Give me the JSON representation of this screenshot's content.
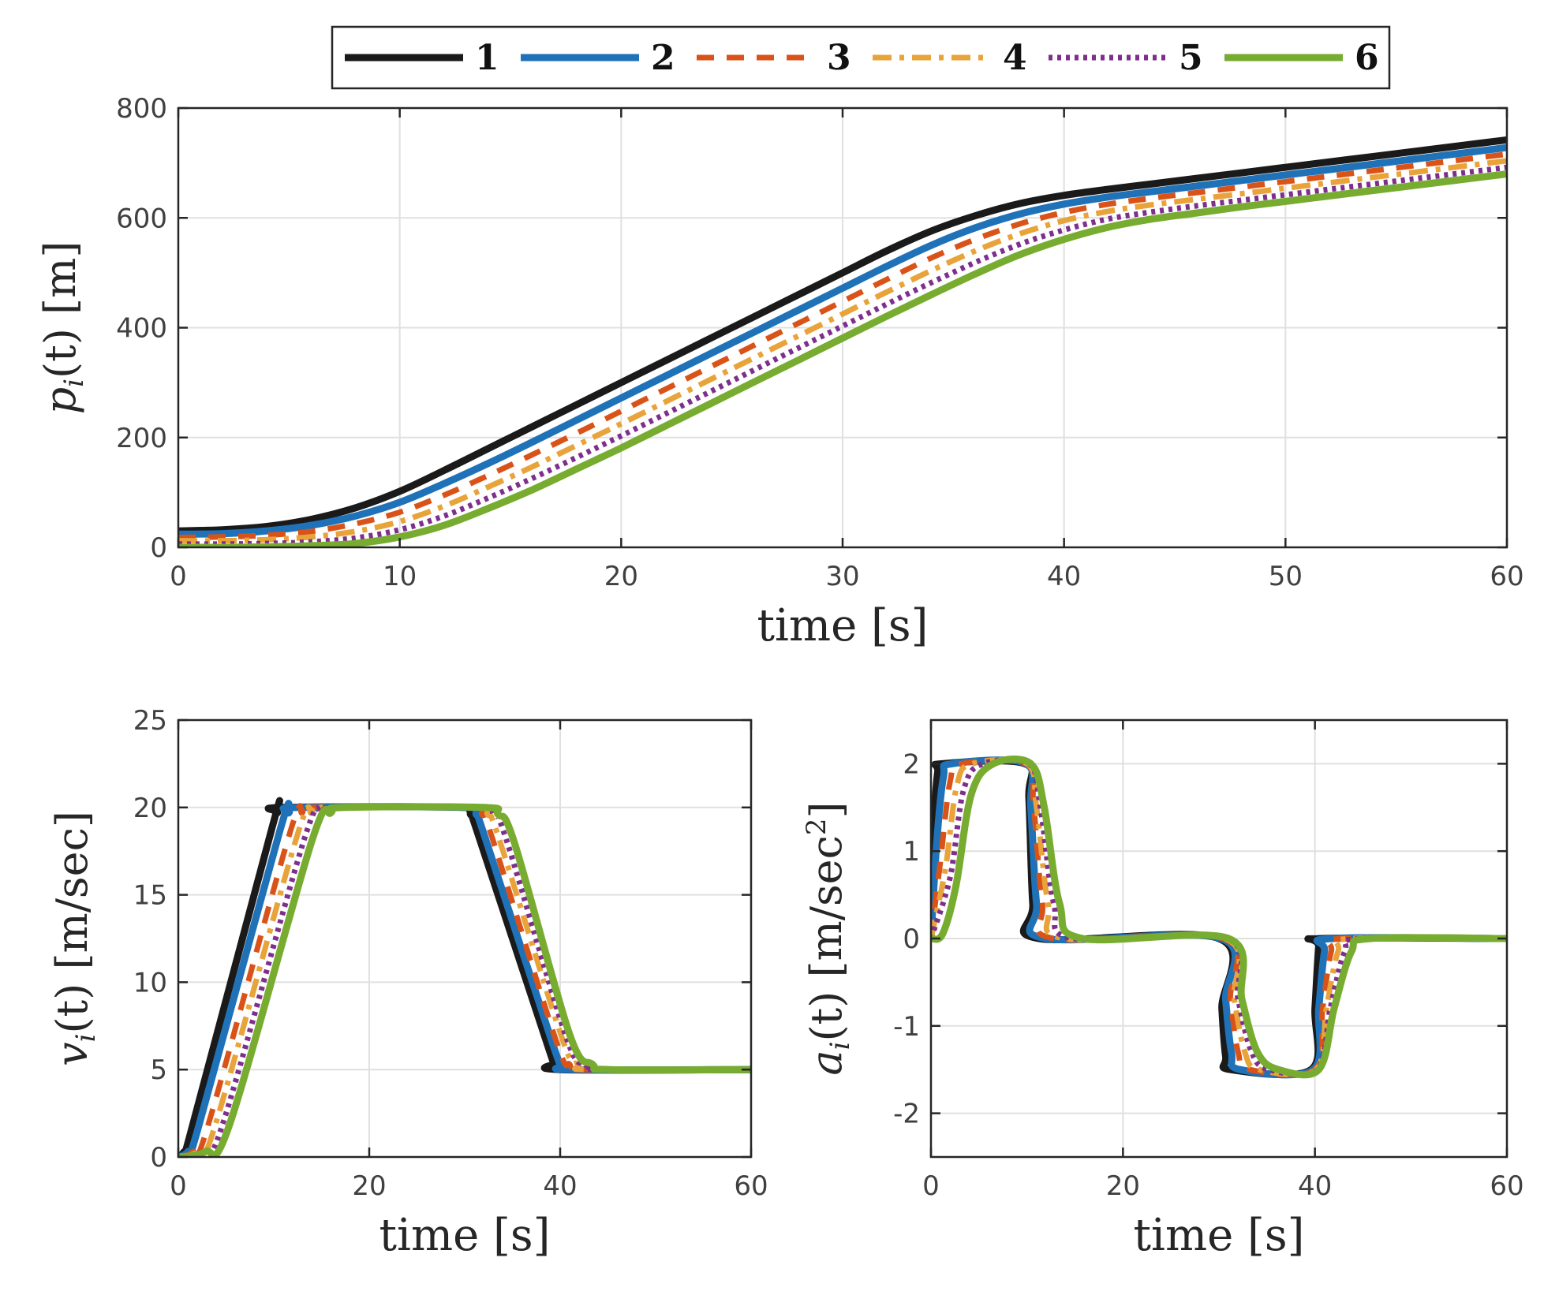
{
  "chart_data": [
    {
      "id": "position",
      "type": "line",
      "xlabel": "time [s]",
      "ylabel_main": "p",
      "ylabel_sub": "i",
      "ylabel_tail": "(t) [m]",
      "xlim": [
        0,
        60
      ],
      "ylim": [
        0,
        800
      ],
      "xticks": [
        0,
        10,
        20,
        30,
        40,
        50,
        60
      ],
      "yticks": [
        0,
        200,
        400,
        600,
        800
      ],
      "x": [
        0,
        2,
        4,
        6,
        8,
        10,
        12,
        14,
        16,
        18,
        20,
        22,
        24,
        26,
        28,
        30,
        32,
        34,
        36,
        38,
        40,
        42,
        44,
        46,
        48,
        50,
        52,
        54,
        56,
        58,
        60
      ],
      "series": [
        {
          "name": "1",
          "values": [
            30,
            32,
            38,
            51,
            72,
            102,
            140,
            180,
            220,
            260,
            300,
            340,
            380,
            420,
            460,
            500,
            540,
            576,
            604,
            626,
            641,
            652,
            662,
            672,
            682,
            692,
            702,
            712,
            722,
            732,
            742
          ]
        },
        {
          "name": "2",
          "values": [
            24,
            25,
            30,
            40,
            57,
            82,
            116,
            153,
            192,
            232,
            272,
            312,
            352,
            392,
            432,
            472,
            512,
            550,
            582,
            607,
            625,
            638,
            648,
            658,
            668,
            678,
            688,
            698,
            708,
            718,
            728
          ]
        },
        {
          "name": "3",
          "values": [
            18,
            19,
            22,
            29,
            43,
            64,
            95,
            131,
            169,
            208,
            248,
            288,
            328,
            368,
            408,
            448,
            488,
            527,
            561,
            589,
            610,
            625,
            636,
            646,
            656,
            666,
            676,
            686,
            696,
            706,
            716
          ]
        },
        {
          "name": "4",
          "values": [
            12,
            12,
            14,
            19,
            29,
            47,
            75,
            110,
            147,
            186,
            225,
            265,
            305,
            345,
            385,
            425,
            465,
            504,
            540,
            571,
            595,
            612,
            624,
            634,
            644,
            654,
            664,
            674,
            684,
            694,
            704
          ]
        },
        {
          "name": "5",
          "values": [
            6,
            6,
            7,
            10,
            17,
            32,
            57,
            90,
            126,
            164,
            203,
            243,
            283,
            323,
            363,
            403,
            443,
            482,
            519,
            552,
            578,
            598,
            611,
            622,
            632,
            642,
            652,
            662,
            672,
            682,
            692
          ]
        },
        {
          "name": "6",
          "values": [
            0,
            0,
            1,
            3,
            7,
            19,
            40,
            71,
            105,
            143,
            181,
            221,
            261,
            301,
            341,
            381,
            421,
            460,
            498,
            533,
            561,
            583,
            598,
            609,
            620,
            630,
            640,
            650,
            660,
            670,
            680
          ]
        }
      ]
    },
    {
      "id": "velocity",
      "type": "line",
      "xlabel": "time [s]",
      "ylabel_main": "v",
      "ylabel_sub": "i",
      "ylabel_tail": "(t) [m/sec]",
      "xlim": [
        0,
        60
      ],
      "ylim": [
        0,
        25
      ],
      "xticks": [
        0,
        20,
        40,
        60
      ],
      "yticks": [
        0,
        5,
        10,
        15,
        20,
        25
      ],
      "series": [
        {
          "name": "1",
          "points": [
            [
              0,
              0
            ],
            [
              0.6,
              0.3
            ],
            [
              1.2,
              1.2
            ],
            [
              9.8,
              18.8
            ],
            [
              10.4,
              19.7
            ],
            [
              11,
              20
            ],
            [
              30,
              20
            ],
            [
              30.6,
              19.6
            ],
            [
              31.2,
              18.8
            ],
            [
              38.8,
              6.2
            ],
            [
              39.4,
              5.4
            ],
            [
              40,
              5
            ],
            [
              60,
              5
            ]
          ]
        },
        {
          "name": "2",
          "points": [
            [
              0,
              0
            ],
            [
              1,
              0.3
            ],
            [
              2,
              1.5
            ],
            [
              10.6,
              18.6
            ],
            [
              11.6,
              19.7
            ],
            [
              12.6,
              20
            ],
            [
              30.4,
              20
            ],
            [
              31.2,
              19.6
            ],
            [
              32,
              18.5
            ],
            [
              39.2,
              6.5
            ],
            [
              40.2,
              5.3
            ],
            [
              41.2,
              5
            ],
            [
              60,
              5
            ]
          ]
        },
        {
          "name": "3",
          "points": [
            [
              0,
              0
            ],
            [
              1.5,
              0.3
            ],
            [
              3,
              1.6
            ],
            [
              11.6,
              18.4
            ],
            [
              13,
              19.7
            ],
            [
              14,
              20
            ],
            [
              30.8,
              20
            ],
            [
              31.8,
              19.6
            ],
            [
              32.8,
              18.4
            ],
            [
              39.6,
              6.6
            ],
            [
              41,
              5.3
            ],
            [
              42.2,
              5
            ],
            [
              60,
              5
            ]
          ]
        },
        {
          "name": "4",
          "points": [
            [
              0,
              0
            ],
            [
              2,
              0.3
            ],
            [
              3.8,
              1.7
            ],
            [
              12.4,
              18.3
            ],
            [
              14,
              19.7
            ],
            [
              15.2,
              20
            ],
            [
              31.2,
              20
            ],
            [
              32.4,
              19.6
            ],
            [
              33.6,
              18.2
            ],
            [
              40.2,
              6.8
            ],
            [
              41.8,
              5.3
            ],
            [
              43.2,
              5
            ],
            [
              60,
              5
            ]
          ]
        },
        {
          "name": "5",
          "points": [
            [
              0,
              0
            ],
            [
              2.4,
              0.3
            ],
            [
              4.6,
              1.8
            ],
            [
              13.2,
              18.2
            ],
            [
              15,
              19.7
            ],
            [
              16.3,
              20
            ],
            [
              31.6,
              20
            ],
            [
              33,
              19.6
            ],
            [
              34.4,
              18.1
            ],
            [
              40.6,
              6.9
            ],
            [
              42.6,
              5.3
            ],
            [
              44.2,
              5
            ],
            [
              60,
              5
            ]
          ]
        },
        {
          "name": "6",
          "points": [
            [
              0,
              0
            ],
            [
              2.8,
              0.3
            ],
            [
              5.4,
              1.9
            ],
            [
              14,
              18.1
            ],
            [
              16,
              19.7
            ],
            [
              17.5,
              20
            ],
            [
              32,
              20
            ],
            [
              33.5,
              19.6
            ],
            [
              35.2,
              18
            ],
            [
              41,
              7
            ],
            [
              43.4,
              5.3
            ],
            [
              45.2,
              5
            ],
            [
              60,
              5
            ]
          ]
        }
      ]
    },
    {
      "id": "acceleration",
      "type": "line",
      "xlabel": "time [s]",
      "ylabel_main": "a",
      "ylabel_sub": "i",
      "ylabel_tail": "(t) [m/sec",
      "ylabel_sup": "2",
      "ylabel_end": "]",
      "xlim": [
        0,
        60
      ],
      "ylim": [
        -2.5,
        2.5
      ],
      "xticks": [
        0,
        20,
        40,
        60
      ],
      "yticks": [
        -2,
        -1,
        0,
        1,
        2
      ],
      "series": [
        {
          "name": "1",
          "points": [
            [
              0,
              0
            ],
            [
              0.3,
              1.3
            ],
            [
              0.7,
              1.9
            ],
            [
              1.2,
              2
            ],
            [
              9.8,
              2
            ],
            [
              10.2,
              1.6
            ],
            [
              10.6,
              0.4
            ],
            [
              11.2,
              0
            ],
            [
              30,
              0
            ],
            [
              30.3,
              -0.8
            ],
            [
              30.7,
              -1.35
            ],
            [
              31.2,
              -1.5
            ],
            [
              39.6,
              -1.5
            ],
            [
              40,
              -0.8
            ],
            [
              40.4,
              -0.1
            ],
            [
              40.8,
              0
            ],
            [
              60,
              0
            ]
          ]
        },
        {
          "name": "2",
          "points": [
            [
              0,
              0
            ],
            [
              0.6,
              1.1
            ],
            [
              1.3,
              1.85
            ],
            [
              2.2,
              2
            ],
            [
              9.9,
              2
            ],
            [
              10.4,
              1.5
            ],
            [
              11,
              0.4
            ],
            [
              11.9,
              0
            ],
            [
              30.2,
              0
            ],
            [
              30.7,
              -0.7
            ],
            [
              31.3,
              -1.3
            ],
            [
              32.2,
              -1.5
            ],
            [
              39.8,
              -1.5
            ],
            [
              40.4,
              -0.8
            ],
            [
              41,
              -0.15
            ],
            [
              41.8,
              0
            ],
            [
              60,
              0
            ]
          ]
        },
        {
          "name": "3",
          "points": [
            [
              0,
              0
            ],
            [
              1,
              0.9
            ],
            [
              2,
              1.8
            ],
            [
              3.2,
              2
            ],
            [
              9.9,
              2
            ],
            [
              10.7,
              1.5
            ],
            [
              11.6,
              0.4
            ],
            [
              12.8,
              0
            ],
            [
              30.4,
              0
            ],
            [
              31.2,
              -0.7
            ],
            [
              32,
              -1.3
            ],
            [
              33.2,
              -1.5
            ],
            [
              40,
              -1.5
            ],
            [
              40.8,
              -0.8
            ],
            [
              41.7,
              -0.15
            ],
            [
              42.8,
              0
            ],
            [
              60,
              0
            ]
          ]
        },
        {
          "name": "4",
          "points": [
            [
              0,
              0
            ],
            [
              1.5,
              0.8
            ],
            [
              2.7,
              1.75
            ],
            [
              4.3,
              2
            ],
            [
              10,
              2
            ],
            [
              11,
              1.5
            ],
            [
              12.2,
              0.4
            ],
            [
              13.8,
              0
            ],
            [
              30.6,
              0
            ],
            [
              31.6,
              -0.7
            ],
            [
              32.7,
              -1.3
            ],
            [
              34.2,
              -1.5
            ],
            [
              40.1,
              -1.5
            ],
            [
              41.2,
              -0.8
            ],
            [
              42.4,
              -0.15
            ],
            [
              43.8,
              0
            ],
            [
              60,
              0
            ]
          ]
        },
        {
          "name": "5",
          "points": [
            [
              0,
              0
            ],
            [
              2,
              0.7
            ],
            [
              3.4,
              1.7
            ],
            [
              5.4,
              2
            ],
            [
              10.2,
              2
            ],
            [
              11.4,
              1.5
            ],
            [
              12.8,
              0.4
            ],
            [
              14.8,
              0
            ],
            [
              30.8,
              0
            ],
            [
              32,
              -0.7
            ],
            [
              33.4,
              -1.3
            ],
            [
              35.2,
              -1.5
            ],
            [
              40.2,
              -1.5
            ],
            [
              41.6,
              -0.8
            ],
            [
              43.1,
              -0.15
            ],
            [
              44.8,
              0
            ],
            [
              60,
              0
            ]
          ]
        },
        {
          "name": "6",
          "points": [
            [
              0,
              0
            ],
            [
              1.2,
              0.05
            ],
            [
              2.6,
              0.6
            ],
            [
              4.2,
              1.65
            ],
            [
              6.5,
              2
            ],
            [
              10.4,
              2
            ],
            [
              11.8,
              1.5
            ],
            [
              13.4,
              0.4
            ],
            [
              15.8,
              0
            ],
            [
              31,
              0
            ],
            [
              32.4,
              -0.7
            ],
            [
              34,
              -1.3
            ],
            [
              36.2,
              -1.5
            ],
            [
              40.4,
              -1.5
            ],
            [
              42,
              -0.8
            ],
            [
              43.8,
              -0.15
            ],
            [
              45.8,
              0
            ],
            [
              60,
              0
            ]
          ]
        }
      ]
    }
  ],
  "legend": {
    "placement": "top-center",
    "entries": [
      {
        "label": "1",
        "color": "#1a1a1a",
        "style": "solid"
      },
      {
        "label": "2",
        "color": "#1f72b8",
        "style": "solid"
      },
      {
        "label": "3",
        "color": "#d95319",
        "style": "dashed"
      },
      {
        "label": "4",
        "color": "#e8a33a",
        "style": "dashdot"
      },
      {
        "label": "5",
        "color": "#7e2f8e",
        "style": "dotted"
      },
      {
        "label": "6",
        "color": "#77ac30",
        "style": "solid"
      }
    ]
  }
}
